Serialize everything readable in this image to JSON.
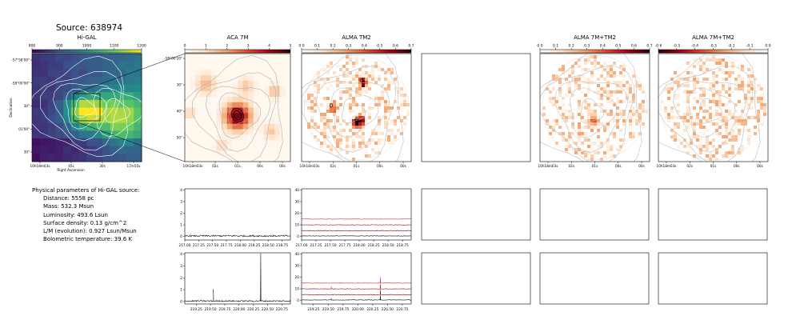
{
  "title": "Source: 638974",
  "colors": {
    "viridis": [
      "#440154",
      "#3b528b",
      "#21918c",
      "#5ec962",
      "#fde725"
    ],
    "heat": [
      "#ffffff",
      "#fde0c5",
      "#f7a26b",
      "#e0492a",
      "#a0001c",
      "#2b0000"
    ]
  },
  "panels": {
    "higal": {
      "title": "Hi-GAL",
      "colorbar_ticks": [
        "800",
        "900",
        "1000",
        "1100",
        "1200"
      ],
      "ytick_labels": [
        "-57°58'00\"",
        "-58°00'00\"",
        "30\"",
        "01'00\"",
        "30\""
      ],
      "xtick_labels": [
        "10h18m03s",
        "45s",
        "30s",
        "17m55s"
      ],
      "xlabel": "Right Ascension",
      "ylabel": "Declination"
    },
    "aca": {
      "title": "ACA 7M",
      "colorbar_ticks": [
        "0",
        "1",
        "2",
        "3",
        "4",
        "5"
      ],
      "ytick_labels": [
        "-58°00'20\"",
        "30\"",
        "40\"",
        "50\""
      ],
      "xtick_labels": [
        "10h18m03s",
        "02s",
        "01s",
        "00s",
        "00s"
      ]
    },
    "alma": {
      "title": "ALMA TM2",
      "colorbar_ticks": [
        "0.0",
        "0.1",
        "0.2",
        "0.3",
        "0.4",
        "0.5",
        "0.6",
        "0.7"
      ],
      "xtick_labels": [
        "10h18m03s",
        "02s",
        "01s",
        "00s",
        "00s"
      ]
    },
    "combo1": {
      "title": "ALMA 7M+TM2",
      "colorbar_ticks": [
        "0.0",
        "0.1",
        "0.2",
        "0.3",
        "0.4",
        "0.5",
        "0.6",
        "0.7"
      ],
      "xtick_labels": [
        "10h18m03s",
        "02s",
        "01s",
        "00s",
        "00s"
      ]
    },
    "combo2": {
      "title": "ALMA 7M+TM2",
      "colorbar_ticks": [
        "-0.6",
        "-0.5",
        "-0.4",
        "-0.3",
        "-0.2",
        "-0.1",
        "0.0"
      ],
      "xtick_labels": [
        "10h18m03s",
        "02s",
        "01s",
        "00s",
        "00s"
      ]
    }
  },
  "params": {
    "heading": "Physical parameters of Hi-GAL source:",
    "lines": [
      "Distance: 5558 pc",
      "Mass: 532.3 Msun",
      "Luminosity: 493.6 Lsun",
      "Surface density: 0.13 g/cm^2",
      "L/M (evolution): 0.927 Lsun/Msun",
      "Bolometric temperature: 39.6 K"
    ]
  },
  "chart_data": [
    {
      "type": "line",
      "panel": "aca-spectrum-1",
      "x_ticks": [
        217.0,
        217.25,
        217.5,
        217.75,
        218.0,
        218.25,
        218.5,
        218.75
      ],
      "x_range": [
        217.0,
        218.9
      ],
      "y_ticks": [
        0,
        1,
        2,
        3,
        4
      ],
      "y_range": [
        -0.3,
        4.1
      ],
      "series": [
        {
          "baseline": 0.05,
          "noise": 0.07,
          "peaks": []
        }
      ]
    },
    {
      "type": "line",
      "panel": "alma-spectrum-1",
      "x_ticks": [
        217.0,
        217.25,
        217.5,
        217.75,
        218.0,
        218.25,
        218.5,
        218.75
      ],
      "x_range": [
        217.0,
        218.9
      ],
      "y_ticks": [
        0,
        10,
        20,
        30,
        40
      ],
      "y_range": [
        -3,
        41
      ],
      "series": [
        {
          "baseline": 0.5,
          "noise": 0.25,
          "peaks": []
        },
        {
          "baseline": 5,
          "noise": 0.25,
          "peaks": []
        },
        {
          "baseline": 10,
          "noise": 0.25,
          "peaks": []
        },
        {
          "baseline": 15,
          "noise": 0.25,
          "peaks": []
        }
      ]
    },
    {
      "type": "line",
      "panel": "aca-spectrum-2",
      "x_ticks": [
        219.25,
        219.5,
        219.75,
        220.0,
        220.25,
        220.5,
        220.75
      ],
      "x_range": [
        219.05,
        220.9
      ],
      "y_ticks": [
        0,
        1,
        2,
        3,
        4
      ],
      "y_range": [
        -0.2,
        4.1
      ],
      "series": [
        {
          "baseline": 0.05,
          "noise": 0.06,
          "peaks": [
            [
              219.55,
              1.0
            ],
            [
              220.38,
              4.0
            ]
          ]
        }
      ]
    },
    {
      "type": "line",
      "panel": "alma-spectrum-2",
      "x_ticks": [
        219.25,
        219.5,
        219.75,
        220.0,
        220.25,
        220.5,
        220.75
      ],
      "x_range": [
        219.05,
        220.9
      ],
      "y_ticks": [
        0,
        10,
        20,
        30,
        40
      ],
      "y_range": [
        -3,
        41
      ],
      "series": [
        {
          "baseline": 0.5,
          "noise": 0.25,
          "peaks": [
            [
              219.55,
              1.5
            ],
            [
              220.38,
              4
            ]
          ]
        },
        {
          "baseline": 5,
          "noise": 0.25,
          "peaks": [
            [
              220.38,
              4
            ]
          ]
        },
        {
          "baseline": 10,
          "noise": 0.25,
          "peaks": [
            [
              219.55,
              2
            ],
            [
              220.38,
              4
            ]
          ]
        },
        {
          "baseline": 15,
          "noise": 0.25,
          "peaks": [
            [
              220.38,
              5
            ]
          ]
        }
      ]
    }
  ]
}
